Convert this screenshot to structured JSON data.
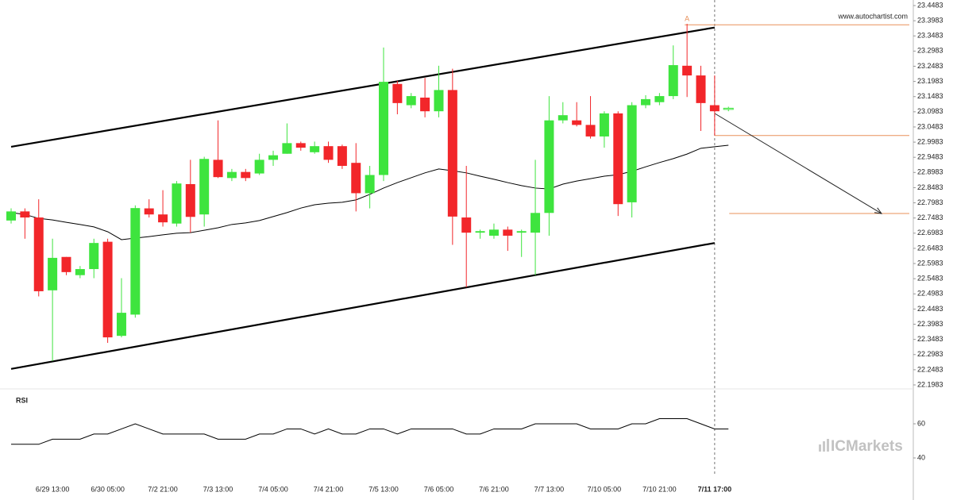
{
  "watermark": "www.autochartist.com",
  "logo": "ICMarkets",
  "chart_data": {
    "type": "candlestick",
    "categories": [
      null,
      null,
      null,
      "6/29 13:00",
      null,
      null,
      null,
      "6/30 05:00",
      null,
      null,
      null,
      "7/2 21:00",
      null,
      null,
      null,
      "7/3 13:00",
      null,
      null,
      null,
      "7/4 05:00",
      null,
      null,
      null,
      "7/4 21:00",
      null,
      null,
      null,
      "7/5 13:00",
      null,
      null,
      null,
      "7/6 05:00",
      null,
      null,
      null,
      "7/6 21:00",
      null,
      null,
      null,
      "7/7 13:00",
      null,
      null,
      null,
      "7/10 05:00",
      null,
      null,
      null,
      "7/10 21:00",
      null,
      null,
      null,
      "7/11 17:00",
      null
    ],
    "open": [
      22.74,
      22.77,
      22.75,
      22.51,
      22.62,
      22.56,
      22.58,
      22.67,
      22.36,
      22.43,
      22.78,
      22.76,
      22.73,
      22.86,
      22.76,
      22.94,
      22.88,
      22.9,
      22.895,
      22.94,
      22.96,
      22.995,
      22.965,
      22.985,
      22.985,
      22.93,
      22.83,
      22.89,
      23.19,
      23.12,
      23.145,
      23.1,
      23.17,
      22.75,
      22.7,
      22.69,
      22.71,
      22.7,
      22.7,
      22.765,
      23.07,
      23.07,
      23.055,
      23.017,
      23.093,
      22.8,
      23.12,
      23.13,
      23.15,
      23.25,
      23.218,
      23.12,
      23.107
    ],
    "high": [
      22.78,
      22.78,
      22.81,
      22.68,
      22.62,
      22.59,
      22.68,
      22.68,
      22.55,
      22.79,
      22.81,
      22.84,
      22.87,
      22.94,
      22.95,
      23.07,
      22.91,
      22.91,
      22.96,
      22.97,
      23.06,
      23.0,
      23.0,
      23.0,
      22.99,
      22.995,
      22.92,
      23.31,
      23.2,
      23.16,
      23.21,
      23.25,
      23.24,
      22.92,
      22.71,
      22.73,
      22.72,
      22.71,
      22.94,
      23.15,
      23.13,
      23.13,
      23.15,
      23.1,
      23.1,
      23.13,
      23.153,
      23.16,
      23.317,
      23.388,
      23.25,
      23.218,
      23.115
    ],
    "low": [
      22.73,
      22.68,
      22.49,
      22.277,
      22.56,
      22.55,
      22.55,
      22.337,
      22.355,
      22.42,
      22.75,
      22.72,
      22.72,
      22.7,
      22.72,
      22.88,
      22.87,
      22.87,
      22.89,
      22.92,
      22.96,
      22.97,
      22.96,
      22.93,
      22.91,
      22.77,
      22.78,
      22.87,
      23.09,
      23.11,
      23.08,
      23.08,
      22.66,
      22.52,
      22.68,
      22.68,
      22.64,
      22.62,
      22.56,
      22.69,
      23.06,
      23.05,
      23.01,
      22.98,
      22.755,
      22.75,
      23.11,
      23.12,
      23.14,
      23.147,
      23.035,
      23.02,
      23.1
    ],
    "close": [
      22.77,
      22.75,
      22.507,
      22.617,
      22.57,
      22.58,
      22.666,
      22.355,
      22.436,
      22.781,
      22.76,
      22.734,
      22.862,
      22.752,
      22.943,
      22.883,
      22.9,
      22.88,
      22.94,
      22.955,
      22.995,
      22.98,
      22.985,
      22.94,
      22.92,
      22.83,
      22.89,
      23.197,
      23.127,
      23.15,
      23.1,
      23.17,
      22.753,
      22.7,
      22.705,
      22.71,
      22.69,
      22.705,
      22.765,
      23.07,
      23.087,
      23.055,
      23.017,
      23.093,
      22.794,
      23.12,
      23.14,
      23.15,
      23.252,
      23.218,
      23.127,
      23.1,
      23.11
    ],
    "up_color": "#3ee43e",
    "down_color": "#f2262a",
    "last_hollow": true,
    "current_index": 51,
    "moving_average": {
      "color": "#000000",
      "values": [
        22.766,
        22.76,
        22.747,
        22.742,
        22.734,
        22.727,
        22.719,
        22.703,
        22.677,
        22.682,
        22.687,
        22.693,
        22.698,
        22.7,
        22.708,
        22.716,
        22.727,
        22.732,
        22.74,
        22.753,
        22.766,
        22.781,
        22.792,
        22.797,
        22.8,
        22.808,
        22.826,
        22.847,
        22.865,
        22.881,
        22.897,
        22.91,
        22.904,
        22.897,
        22.886,
        22.876,
        22.865,
        22.855,
        22.847,
        22.844,
        22.86,
        22.87,
        22.878,
        22.886,
        22.891,
        22.902,
        22.917,
        22.931,
        22.944,
        22.959,
        22.978,
        22.983,
        22.988
      ]
    },
    "channel": {
      "color": "#000000",
      "upper": [
        22.983,
        23.376
      ],
      "lower": [
        22.251,
        22.666
      ]
    },
    "pattern_levels": {
      "color": "#e8905a",
      "values": [
        23.385,
        23.02
      ]
    },
    "marker": {
      "label": "A",
      "value": 23.388
    },
    "forecast": {
      "from": 23.093,
      "target": 22.763
    },
    "ylim": [
      22.1983,
      23.4483
    ],
    "yticks": [
      22.1983,
      22.2483,
      22.2983,
      22.3483,
      22.3983,
      22.4483,
      22.4983,
      22.5483,
      22.5983,
      22.6483,
      22.6983,
      22.7483,
      22.7983,
      22.8483,
      22.8983,
      22.9483,
      22.9983,
      23.0483,
      23.0983,
      23.1483,
      23.1983,
      23.2483,
      23.2983,
      23.3483,
      23.3983,
      23.4483
    ],
    "rsi": {
      "title": "RSI",
      "color": "#000000",
      "values": [
        48,
        48,
        48,
        51,
        51,
        51,
        54,
        54,
        57,
        60,
        57,
        54,
        54,
        54,
        54,
        51,
        51,
        51,
        54,
        54,
        57,
        57,
        54,
        57,
        54,
        54,
        57,
        57,
        54,
        57,
        57,
        57,
        57,
        54,
        54,
        57,
        57,
        57,
        60,
        60,
        60,
        60,
        57,
        57,
        57,
        60,
        60,
        63,
        63,
        63,
        60,
        57,
        57
      ],
      "ylim": [
        30,
        70
      ],
      "yticks": [
        60,
        40
      ]
    }
  }
}
